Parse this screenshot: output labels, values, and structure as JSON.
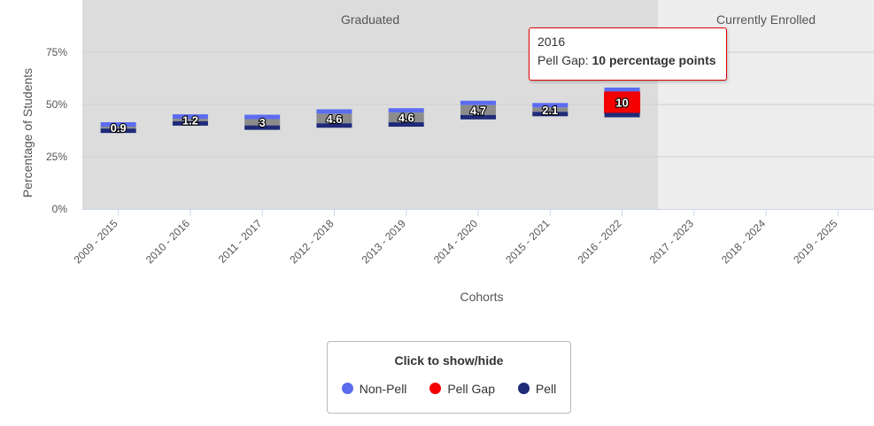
{
  "chart_data": {
    "type": "bar",
    "stacked": true,
    "categories": [
      "2009 - 2015",
      "2010 - 2016",
      "2011 - 2017",
      "2012 - 2018",
      "2013 - 2019",
      "2014 - 2020",
      "2015 - 2021",
      "2016 - 2022",
      "2017 - 2023",
      "2018 - 2024",
      "2019 - 2025"
    ],
    "series": [
      {
        "name": "Pell",
        "color": "#1f2a78",
        "values": [
          38.5,
          42.0,
          40.0,
          41.0,
          41.5,
          45.0,
          46.5,
          46.0,
          null,
          null,
          null
        ]
      },
      {
        "name": "Pell Gap",
        "color": "#f40000",
        "values": [
          0.9,
          1.2,
          3,
          4.6,
          4.6,
          4.7,
          2.1,
          10,
          null,
          null,
          null
        ]
      },
      {
        "name": "Non-Pell",
        "color": "#5b6cf0",
        "values": [
          39.4,
          43.2,
          43.0,
          45.6,
          46.1,
          49.7,
          48.6,
          56.0,
          null,
          null,
          null
        ]
      }
    ],
    "gap_labels": [
      "0.9",
      "1.2",
      "3",
      "4.6",
      "4.6",
      "4.7",
      "2.1",
      "10"
    ],
    "highlighted_index": 7,
    "bands": [
      {
        "label": "Graduated",
        "from_index": 0,
        "to_index": 7
      },
      {
        "label": "Currently Enrolled",
        "from_index": 8,
        "to_index": 10
      }
    ],
    "y_ticks": [
      "0%",
      "25%",
      "50%",
      "75%"
    ],
    "y_tick_values": [
      0,
      25,
      50,
      75
    ],
    "ylim": [
      0,
      100
    ],
    "xlabel": "Cohorts",
    "ylabel": "Percentage of Students",
    "colors": {
      "pell": "#1f2a78",
      "gap": "#f40000",
      "gap_inactive": "#8c8c8c",
      "non_pell": "#5b6cf0",
      "band_graduated": "#dcdcdc",
      "band_enrolled": "#ededed"
    }
  },
  "tooltip": {
    "cohort": "2016",
    "label": "Pell Gap:",
    "value_text": "10 percentage points"
  },
  "legend": {
    "title": "Click to show/hide",
    "items": [
      {
        "label": "Non-Pell",
        "color": "#5b6cf0"
      },
      {
        "label": "Pell Gap",
        "color": "#f40000"
      },
      {
        "label": "Pell",
        "color": "#1f2a78"
      }
    ]
  }
}
